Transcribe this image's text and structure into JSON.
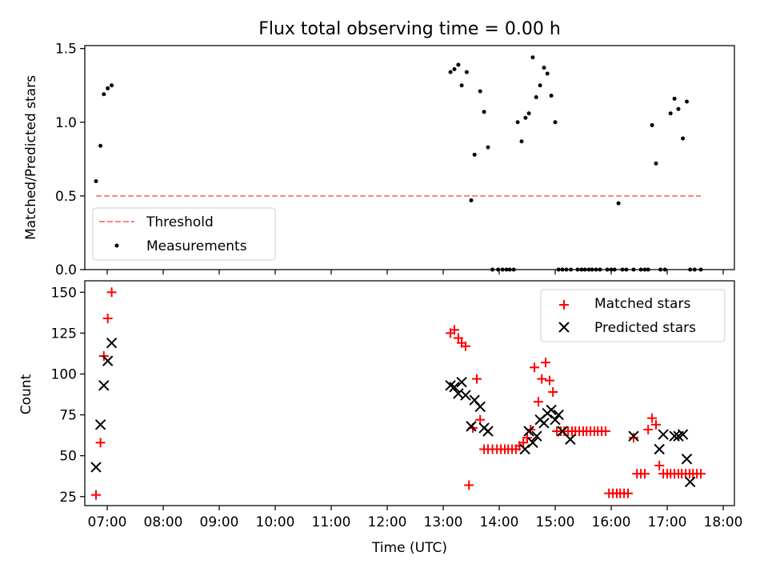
{
  "figure": {
    "title": "Flux total observing time = 0.00 h"
  },
  "chart_data": [
    {
      "type": "scatter",
      "ylabel": "Matched/Predicted stars",
      "xlim": [
        6.6,
        18.2
      ],
      "ylim": [
        0,
        1.52
      ],
      "yticks": [
        0,
        0.5,
        1.0,
        1.5
      ],
      "ytick_labels": [
        "0.0",
        "0.5",
        "1.0",
        "1.5"
      ],
      "grid": false,
      "legend": {
        "position": "lower-left",
        "entries": [
          "Threshold",
          "Measurements"
        ]
      },
      "series": [
        {
          "name": "Threshold",
          "style": "dashed-line",
          "color": "#ff7f7f",
          "x": [
            6.8,
            17.6
          ],
          "y": [
            0.5,
            0.5
          ]
        },
        {
          "name": "Measurements",
          "style": "dot",
          "color": "#000000",
          "x": [
            6.8,
            6.88,
            6.94,
            7.01,
            7.08,
            13.13,
            13.2,
            13.27,
            13.33,
            13.42,
            13.5,
            13.56,
            13.66,
            13.73,
            13.8,
            13.88,
            13.98,
            14.06,
            14.13,
            14.19,
            14.26,
            14.33,
            14.4,
            14.47,
            14.53,
            14.6,
            14.66,
            14.73,
            14.8,
            14.86,
            14.93,
            15.0,
            15.06,
            15.13,
            15.2,
            15.28,
            15.4,
            15.47,
            15.53,
            15.6,
            15.66,
            15.73,
            15.8,
            15.93,
            16.0,
            16.06,
            16.13,
            16.2,
            16.27,
            16.4,
            16.53,
            16.6,
            16.66,
            16.73,
            16.8,
            16.88,
            16.96,
            17.06,
            17.13,
            17.2,
            17.28,
            17.35,
            17.41,
            17.49,
            17.6
          ],
          "y": [
            0.6,
            0.84,
            1.19,
            1.23,
            1.25,
            1.34,
            1.36,
            1.39,
            1.25,
            1.34,
            0.47,
            0.78,
            1.21,
            1.07,
            0.83,
            0.0,
            0.0,
            0.0,
            0.0,
            0.0,
            0.0,
            1.0,
            0.87,
            1.03,
            1.06,
            1.44,
            1.17,
            1.25,
            1.37,
            1.33,
            1.18,
            1.0,
            0.0,
            0.0,
            0.0,
            0.0,
            0.0,
            0.0,
            0.0,
            0.0,
            0.0,
            0.0,
            0.0,
            0.0,
            0.0,
            0.0,
            0.45,
            0.0,
            0.0,
            0.0,
            0.0,
            0.0,
            0.0,
            0.98,
            0.72,
            0.0,
            0.0,
            1.06,
            1.16,
            1.09,
            0.89,
            1.14,
            0.0,
            0.0,
            0.0
          ]
        }
      ]
    },
    {
      "type": "scatter",
      "xlabel": "Time (UTC)",
      "ylabel": "Count",
      "xlim": [
        6.6,
        18.2
      ],
      "ylim": [
        19.5,
        157
      ],
      "xticks": [
        7,
        8,
        9,
        10,
        11,
        12,
        13,
        14,
        15,
        16,
        17,
        18
      ],
      "xtick_labels": [
        "07:00",
        "08:00",
        "09:00",
        "10:00",
        "11:00",
        "12:00",
        "13:00",
        "14:00",
        "15:00",
        "16:00",
        "17:00",
        "18:00"
      ],
      "yticks": [
        25,
        50,
        75,
        100,
        125,
        150
      ],
      "ytick_labels": [
        "25",
        "50",
        "75",
        "100",
        "125",
        "150"
      ],
      "grid": false,
      "legend": {
        "position": "upper-right",
        "entries": [
          "Matched stars",
          "Predicted stars"
        ]
      },
      "series": [
        {
          "name": "Matched stars",
          "marker": "plus",
          "color": "#ff0000",
          "x": [
            6.8,
            6.88,
            6.94,
            7.01,
            7.08,
            13.13,
            13.2,
            13.27,
            13.33,
            13.4,
            13.46,
            13.53,
            13.6,
            13.66,
            13.73,
            13.8,
            13.88,
            13.96,
            14.03,
            14.1,
            14.16,
            14.23,
            14.3,
            14.36,
            14.43,
            14.5,
            14.56,
            14.63,
            14.7,
            14.76,
            14.83,
            14.9,
            14.96,
            15.03,
            15.1,
            15.16,
            15.23,
            15.3,
            15.36,
            15.43,
            15.5,
            15.56,
            15.63,
            15.7,
            15.76,
            15.83,
            15.9,
            15.96,
            16.03,
            16.1,
            16.16,
            16.23,
            16.3,
            16.4,
            16.46,
            16.53,
            16.6,
            16.66,
            16.73,
            16.8,
            16.86,
            16.93,
            17.0,
            17.06,
            17.13,
            17.2,
            17.26,
            17.33,
            17.4,
            17.46,
            17.53,
            17.6
          ],
          "y": [
            26,
            58,
            111,
            134,
            150,
            125,
            127,
            122,
            119,
            117,
            32,
            67,
            97,
            72,
            54,
            54,
            54,
            54,
            54,
            54,
            54,
            54,
            54,
            56,
            58,
            61,
            66,
            104,
            83,
            97,
            107,
            96,
            89,
            65,
            65,
            65,
            65,
            65,
            65,
            65,
            65,
            65,
            65,
            65,
            65,
            65,
            65,
            27,
            27,
            27,
            27,
            27,
            27,
            61,
            39,
            39,
            39,
            66,
            73,
            69,
            44,
            39,
            39,
            39,
            39,
            39,
            39,
            39,
            39,
            39,
            39,
            39
          ]
        },
        {
          "name": "Predicted stars",
          "marker": "cross",
          "color": "#000000",
          "x": [
            6.8,
            6.88,
            6.94,
            7.01,
            7.08,
            13.13,
            13.2,
            13.27,
            13.33,
            13.4,
            13.5,
            13.56,
            13.66,
            13.73,
            13.8,
            14.46,
            14.53,
            14.6,
            14.67,
            14.73,
            14.8,
            14.86,
            14.93,
            15.0,
            15.06,
            15.13,
            15.27,
            16.4,
            16.86,
            16.93,
            17.13,
            17.2,
            17.28,
            17.35,
            17.41
          ],
          "y": [
            43,
            69,
            93,
            108,
            119,
            93,
            92,
            88,
            95,
            87,
            68,
            84,
            80,
            67,
            65,
            54,
            65,
            58,
            62,
            72,
            70,
            76,
            78,
            72,
            75,
            65,
            60,
            62,
            54,
            63,
            62,
            62,
            63,
            48,
            34
          ]
        }
      ]
    }
  ]
}
